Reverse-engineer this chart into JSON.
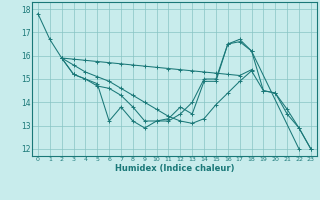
{
  "xlabel": "Humidex (Indice chaleur)",
  "background_color": "#c8ecec",
  "grid_color": "#88c4c4",
  "line_color": "#1a7878",
  "xlim": [
    -0.5,
    23.5
  ],
  "ylim": [
    11.7,
    18.3
  ],
  "yticks": [
    12,
    13,
    14,
    15,
    16,
    17,
    18
  ],
  "xticks": [
    0,
    1,
    2,
    3,
    4,
    5,
    6,
    7,
    8,
    9,
    10,
    11,
    12,
    13,
    14,
    15,
    16,
    17,
    18,
    19,
    20,
    21,
    22,
    23
  ],
  "line1_x": [
    0,
    1,
    2,
    3,
    4,
    5,
    6,
    7,
    8,
    9,
    10,
    11,
    12,
    13,
    14,
    15,
    16,
    17,
    18,
    22
  ],
  "line1_y": [
    17.8,
    16.7,
    15.9,
    15.2,
    15.0,
    14.8,
    13.2,
    13.8,
    13.2,
    12.9,
    13.2,
    13.3,
    13.8,
    13.5,
    14.9,
    14.9,
    16.5,
    16.6,
    16.2,
    12.0
  ],
  "line2_x": [
    2,
    3,
    4,
    5,
    6,
    7,
    8,
    9,
    10,
    11,
    12,
    13,
    14,
    15,
    16,
    17,
    18
  ],
  "line2_y": [
    15.9,
    15.85,
    15.8,
    15.75,
    15.7,
    15.65,
    15.6,
    15.55,
    15.5,
    15.45,
    15.4,
    15.35,
    15.3,
    15.25,
    15.2,
    15.15,
    15.4
  ],
  "line3_x": [
    2,
    3,
    4,
    5,
    6,
    7,
    8,
    9,
    10,
    11,
    12,
    13,
    14,
    15,
    16,
    17,
    18,
    19,
    20,
    21,
    22,
    23
  ],
  "line3_y": [
    15.9,
    15.2,
    15.0,
    14.7,
    14.6,
    14.3,
    13.8,
    13.2,
    13.2,
    13.2,
    13.5,
    14.0,
    15.0,
    15.0,
    16.5,
    16.7,
    16.2,
    14.5,
    14.4,
    13.7,
    12.9,
    12.0
  ],
  "line4_x": [
    2,
    3,
    4,
    5,
    6,
    7,
    8,
    9,
    10,
    11,
    12,
    13,
    14,
    15,
    16,
    17,
    18,
    19,
    20,
    21,
    22,
    23
  ],
  "line4_y": [
    15.9,
    15.6,
    15.3,
    15.1,
    14.9,
    14.6,
    14.3,
    14.0,
    13.7,
    13.4,
    13.2,
    13.1,
    13.3,
    13.9,
    14.4,
    14.9,
    15.35,
    14.5,
    14.4,
    13.5,
    12.9,
    12.0
  ]
}
